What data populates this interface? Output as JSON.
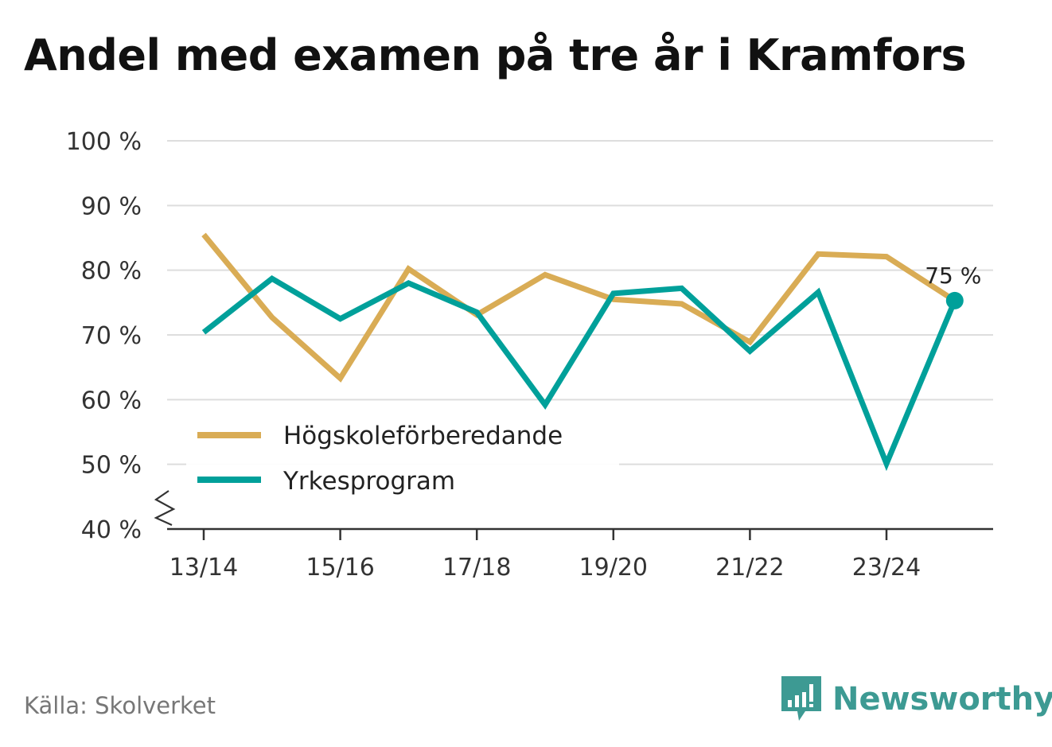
{
  "title": "Andel med examen på tre år i Kramfors",
  "source": "Källa: Skolverket",
  "brand": {
    "name": "Newsworthy",
    "icon": "newsworthy-logo-icon"
  },
  "colors": {
    "series1": "#d9ac55",
    "series2": "#00a09a",
    "grid": "#dddddd",
    "axis": "#333333",
    "brand": "#3d9a93"
  },
  "chart_data": {
    "type": "line",
    "x": [
      "13/14",
      "14/15",
      "15/16",
      "16/17",
      "17/18",
      "18/19",
      "19/20",
      "20/21",
      "21/22",
      "22/23",
      "23/24",
      "24/25"
    ],
    "x_tick_labels": [
      "13/14",
      "15/16",
      "17/18",
      "19/20",
      "21/22",
      "23/24"
    ],
    "y_ticks": [
      40,
      50,
      60,
      70,
      80,
      90,
      100
    ],
    "y_tick_labels": [
      "40 %",
      "50 %",
      "60 %",
      "70 %",
      "80 %",
      "90 %",
      "100 %"
    ],
    "ylim": [
      40,
      100
    ],
    "y_axis_break": true,
    "grid": true,
    "legend_position": "bottom-left",
    "series": [
      {
        "name": "Högskoleförberedande",
        "values": [
          85.5,
          72.7,
          63.3,
          80.2,
          73.1,
          79.3,
          75.5,
          74.8,
          68.9,
          82.5,
          82.1,
          75.3
        ]
      },
      {
        "name": "Yrkesprogram",
        "values": [
          70.4,
          78.7,
          72.5,
          78.0,
          73.5,
          59.2,
          76.4,
          77.2,
          67.5,
          76.6,
          50.1,
          75.3
        ]
      }
    ],
    "end_label": "75 %"
  }
}
